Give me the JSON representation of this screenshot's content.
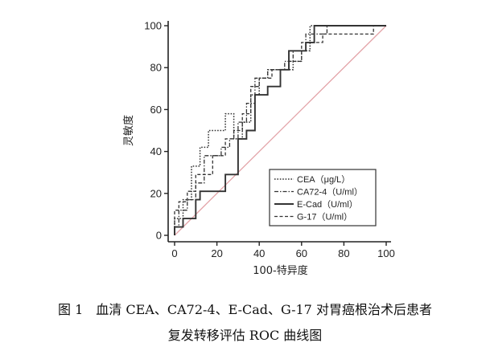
{
  "caption": {
    "line1": "图 1　血清 CEA、CA72-4、E-Cad、G-17 对胃癌根治术后患者",
    "line2": "复发转移评估 ROC 曲线图"
  },
  "chart_data": {
    "type": "line",
    "title": "",
    "xlabel": "100-特异度",
    "ylabel": "灵敏度",
    "xlim": [
      0,
      100
    ],
    "ylim": [
      0,
      100
    ],
    "xticks": [
      "0",
      "20",
      "40",
      "60",
      "80",
      "100"
    ],
    "yticks": [
      "0",
      "20",
      "40",
      "60",
      "80",
      "100"
    ],
    "grid": false,
    "legend_position": "bottom-right",
    "reference_line": true,
    "series": [
      {
        "name": "CEA（μg/L）",
        "dash": "dotted",
        "x": [
          0,
          0,
          4,
          4,
          8,
          8,
          12,
          12,
          16,
          16,
          24,
          24,
          28,
          28,
          32,
          32,
          36,
          36,
          40,
          40,
          44,
          44,
          56,
          56,
          60,
          60,
          64,
          64,
          100
        ],
        "y": [
          0,
          8,
          8,
          17,
          17,
          33,
          33,
          42,
          42,
          50,
          50,
          58,
          58,
          46,
          46,
          54,
          54,
          67,
          67,
          75,
          75,
          79,
          79,
          83,
          83,
          88,
          88,
          100,
          100
        ]
      },
      {
        "name": "CA72-4（U/ml）",
        "dash": "dashdot",
        "x": [
          0,
          0,
          2,
          2,
          6,
          6,
          10,
          10,
          14,
          14,
          22,
          22,
          26,
          26,
          30,
          30,
          34,
          34,
          38,
          38,
          44,
          44,
          52,
          52,
          56,
          56,
          62,
          62,
          72,
          72,
          100
        ],
        "y": [
          0,
          4,
          4,
          12,
          12,
          17,
          17,
          25,
          25,
          38,
          38,
          42,
          42,
          46,
          46,
          54,
          54,
          63,
          63,
          75,
          75,
          79,
          79,
          83,
          83,
          88,
          88,
          96,
          96,
          100,
          100
        ]
      },
      {
        "name": "E-Cad（U/ml）",
        "dash": "solid",
        "x": [
          0,
          0,
          4,
          4,
          10,
          10,
          12,
          12,
          24,
          24,
          30,
          30,
          34,
          34,
          38,
          38,
          44,
          44,
          50,
          50,
          54,
          54,
          62,
          62,
          66,
          66,
          100
        ],
        "y": [
          0,
          4,
          4,
          8,
          8,
          17,
          17,
          21,
          21,
          29,
          29,
          46,
          46,
          50,
          50,
          67,
          67,
          71,
          71,
          79,
          79,
          88,
          88,
          92,
          92,
          100,
          100
        ]
      },
      {
        "name": "G-17（U/ml）",
        "dash": "dashed",
        "x": [
          0,
          0,
          2,
          2,
          6,
          6,
          10,
          10,
          18,
          18,
          24,
          24,
          28,
          28,
          32,
          32,
          36,
          36,
          40,
          40,
          46,
          46,
          54,
          54,
          60,
          60,
          70,
          70,
          94,
          94,
          100
        ],
        "y": [
          0,
          12,
          12,
          16,
          16,
          21,
          21,
          29,
          29,
          38,
          38,
          46,
          46,
          50,
          50,
          58,
          58,
          71,
          71,
          75,
          75,
          79,
          79,
          83,
          83,
          92,
          92,
          96,
          96,
          100,
          100
        ]
      }
    ]
  }
}
